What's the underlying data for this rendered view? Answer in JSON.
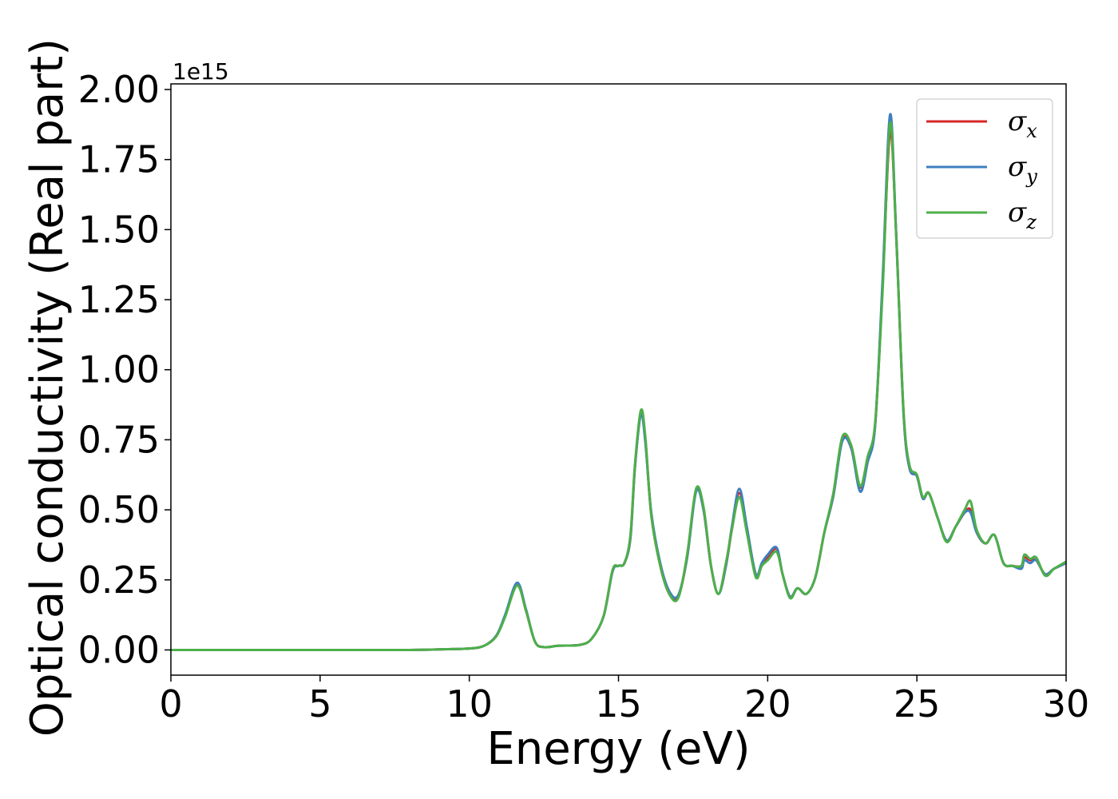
{
  "chart_data": {
    "type": "line",
    "xlabel": "Energy (eV)",
    "ylabel": "Optical conductivity (Real part)",
    "y_offset_text": "1e15",
    "y_scale_factor": 1000000000000000.0,
    "xlim": [
      0,
      30
    ],
    "ylim": [
      -0.09,
      2.02
    ],
    "xticks": [
      0,
      5,
      10,
      15,
      20,
      25,
      30
    ],
    "xtick_labels": [
      "0",
      "5",
      "10",
      "15",
      "20",
      "25",
      "30"
    ],
    "yticks": [
      0,
      0.25,
      0.5,
      0.75,
      1.0,
      1.25,
      1.5,
      1.75,
      2.0
    ],
    "ytick_labels": [
      "0.00",
      "0.25",
      "0.50",
      "0.75",
      "1.00",
      "1.25",
      "1.50",
      "1.75",
      "2.00"
    ],
    "grid": false,
    "legend_position": "top-right",
    "series": [
      {
        "name": "σx",
        "legend_symbol": "σ",
        "legend_subscript": "x",
        "color": "#d62728",
        "points": [
          [
            0,
            0
          ],
          [
            5,
            0
          ],
          [
            8,
            0
          ],
          [
            9,
            0.002
          ],
          [
            10,
            0.005
          ],
          [
            10.5,
            0.015
          ],
          [
            10.9,
            0.05
          ],
          [
            11.2,
            0.12
          ],
          [
            11.6,
            0.235
          ],
          [
            11.9,
            0.14
          ],
          [
            12.2,
            0.03
          ],
          [
            12.5,
            0.01
          ],
          [
            13,
            0.015
          ],
          [
            13.7,
            0.018
          ],
          [
            14.1,
            0.04
          ],
          [
            14.5,
            0.12
          ],
          [
            14.8,
            0.28
          ],
          [
            15.0,
            0.3
          ],
          [
            15.2,
            0.31
          ],
          [
            15.4,
            0.4
          ],
          [
            15.55,
            0.65
          ],
          [
            15.75,
            0.85
          ],
          [
            15.9,
            0.75
          ],
          [
            16.1,
            0.48
          ],
          [
            16.4,
            0.3
          ],
          [
            16.7,
            0.2
          ],
          [
            17.0,
            0.19
          ],
          [
            17.3,
            0.33
          ],
          [
            17.6,
            0.57
          ],
          [
            17.85,
            0.5
          ],
          [
            18.1,
            0.3
          ],
          [
            18.35,
            0.2
          ],
          [
            18.6,
            0.3
          ],
          [
            18.8,
            0.43
          ],
          [
            19.05,
            0.56
          ],
          [
            19.3,
            0.43
          ],
          [
            19.6,
            0.27
          ],
          [
            19.8,
            0.3
          ],
          [
            20.0,
            0.33
          ],
          [
            20.3,
            0.36
          ],
          [
            20.5,
            0.27
          ],
          [
            20.75,
            0.19
          ],
          [
            21.0,
            0.22
          ],
          [
            21.3,
            0.2
          ],
          [
            21.6,
            0.26
          ],
          [
            21.9,
            0.42
          ],
          [
            22.2,
            0.55
          ],
          [
            22.5,
            0.75
          ],
          [
            22.8,
            0.72
          ],
          [
            23.1,
            0.58
          ],
          [
            23.35,
            0.68
          ],
          [
            23.6,
            0.8
          ],
          [
            23.85,
            1.3
          ],
          [
            24.1,
            1.85
          ],
          [
            24.3,
            1.5
          ],
          [
            24.55,
            0.85
          ],
          [
            24.75,
            0.65
          ],
          [
            25.0,
            0.62
          ],
          [
            25.2,
            0.54
          ],
          [
            25.4,
            0.56
          ],
          [
            25.7,
            0.47
          ],
          [
            26.0,
            0.39
          ],
          [
            26.3,
            0.44
          ],
          [
            26.6,
            0.49
          ],
          [
            26.8,
            0.5
          ],
          [
            27.0,
            0.42
          ],
          [
            27.3,
            0.38
          ],
          [
            27.6,
            0.41
          ],
          [
            27.9,
            0.31
          ],
          [
            28.2,
            0.3
          ],
          [
            28.5,
            0.3
          ],
          [
            28.6,
            0.33
          ],
          [
            28.8,
            0.32
          ],
          [
            29.0,
            0.32
          ],
          [
            29.3,
            0.27
          ],
          [
            29.6,
            0.29
          ],
          [
            30,
            0.31
          ]
        ]
      },
      {
        "name": "σy",
        "legend_symbol": "σ",
        "legend_subscript": "y",
        "color": "#3f7fbf",
        "points": [
          [
            0,
            0
          ],
          [
            5,
            0
          ],
          [
            8,
            0
          ],
          [
            9,
            0.002
          ],
          [
            10,
            0.005
          ],
          [
            10.5,
            0.015
          ],
          [
            10.9,
            0.05
          ],
          [
            11.2,
            0.125
          ],
          [
            11.6,
            0.24
          ],
          [
            11.9,
            0.145
          ],
          [
            12.2,
            0.03
          ],
          [
            12.5,
            0.01
          ],
          [
            13,
            0.015
          ],
          [
            13.7,
            0.018
          ],
          [
            14.1,
            0.04
          ],
          [
            14.5,
            0.12
          ],
          [
            14.8,
            0.28
          ],
          [
            15.0,
            0.3
          ],
          [
            15.2,
            0.31
          ],
          [
            15.4,
            0.4
          ],
          [
            15.55,
            0.65
          ],
          [
            15.75,
            0.84
          ],
          [
            15.9,
            0.74
          ],
          [
            16.1,
            0.49
          ],
          [
            16.4,
            0.31
          ],
          [
            16.7,
            0.21
          ],
          [
            17.0,
            0.195
          ],
          [
            17.3,
            0.33
          ],
          [
            17.6,
            0.565
          ],
          [
            17.85,
            0.5
          ],
          [
            18.1,
            0.3
          ],
          [
            18.35,
            0.2
          ],
          [
            18.6,
            0.3
          ],
          [
            18.8,
            0.44
          ],
          [
            19.05,
            0.575
          ],
          [
            19.3,
            0.44
          ],
          [
            19.6,
            0.27
          ],
          [
            19.8,
            0.31
          ],
          [
            20.0,
            0.34
          ],
          [
            20.3,
            0.365
          ],
          [
            20.5,
            0.27
          ],
          [
            20.75,
            0.19
          ],
          [
            21.0,
            0.22
          ],
          [
            21.3,
            0.2
          ],
          [
            21.6,
            0.26
          ],
          [
            21.9,
            0.42
          ],
          [
            22.2,
            0.55
          ],
          [
            22.5,
            0.745
          ],
          [
            22.8,
            0.72
          ],
          [
            23.1,
            0.565
          ],
          [
            23.35,
            0.67
          ],
          [
            23.6,
            0.8
          ],
          [
            23.85,
            1.32
          ],
          [
            24.1,
            1.91
          ],
          [
            24.3,
            1.5
          ],
          [
            24.55,
            0.85
          ],
          [
            24.75,
            0.65
          ],
          [
            25.0,
            0.62
          ],
          [
            25.2,
            0.54
          ],
          [
            25.4,
            0.56
          ],
          [
            25.7,
            0.47
          ],
          [
            26.0,
            0.39
          ],
          [
            26.3,
            0.44
          ],
          [
            26.6,
            0.49
          ],
          [
            26.8,
            0.49
          ],
          [
            27.0,
            0.42
          ],
          [
            27.3,
            0.38
          ],
          [
            27.6,
            0.41
          ],
          [
            27.9,
            0.31
          ],
          [
            28.2,
            0.3
          ],
          [
            28.5,
            0.29
          ],
          [
            28.6,
            0.32
          ],
          [
            28.8,
            0.31
          ],
          [
            29.0,
            0.32
          ],
          [
            29.3,
            0.27
          ],
          [
            29.6,
            0.29
          ],
          [
            30,
            0.31
          ]
        ]
      },
      {
        "name": "σz",
        "legend_symbol": "σ",
        "legend_subscript": "z",
        "color": "#4daf4a",
        "points": [
          [
            0,
            0
          ],
          [
            5,
            0
          ],
          [
            8,
            0
          ],
          [
            9,
            0.002
          ],
          [
            10,
            0.005
          ],
          [
            10.5,
            0.015
          ],
          [
            10.9,
            0.048
          ],
          [
            11.2,
            0.118
          ],
          [
            11.6,
            0.23
          ],
          [
            11.9,
            0.14
          ],
          [
            12.2,
            0.03
          ],
          [
            12.5,
            0.01
          ],
          [
            13,
            0.015
          ],
          [
            13.7,
            0.018
          ],
          [
            14.1,
            0.04
          ],
          [
            14.5,
            0.12
          ],
          [
            14.8,
            0.285
          ],
          [
            15.0,
            0.3
          ],
          [
            15.2,
            0.31
          ],
          [
            15.4,
            0.41
          ],
          [
            15.55,
            0.66
          ],
          [
            15.75,
            0.855
          ],
          [
            15.9,
            0.76
          ],
          [
            16.1,
            0.48
          ],
          [
            16.4,
            0.3
          ],
          [
            16.7,
            0.2
          ],
          [
            17.0,
            0.185
          ],
          [
            17.3,
            0.34
          ],
          [
            17.6,
            0.575
          ],
          [
            17.85,
            0.51
          ],
          [
            18.1,
            0.3
          ],
          [
            18.35,
            0.2
          ],
          [
            18.6,
            0.31
          ],
          [
            18.8,
            0.43
          ],
          [
            19.05,
            0.545
          ],
          [
            19.3,
            0.42
          ],
          [
            19.6,
            0.26
          ],
          [
            19.8,
            0.3
          ],
          [
            20.0,
            0.32
          ],
          [
            20.3,
            0.35
          ],
          [
            20.5,
            0.27
          ],
          [
            20.75,
            0.185
          ],
          [
            21.0,
            0.22
          ],
          [
            21.3,
            0.2
          ],
          [
            21.6,
            0.26
          ],
          [
            21.9,
            0.42
          ],
          [
            22.2,
            0.56
          ],
          [
            22.5,
            0.76
          ],
          [
            22.8,
            0.73
          ],
          [
            23.1,
            0.585
          ],
          [
            23.35,
            0.69
          ],
          [
            23.6,
            0.81
          ],
          [
            23.85,
            1.28
          ],
          [
            24.1,
            1.88
          ],
          [
            24.3,
            1.49
          ],
          [
            24.55,
            0.86
          ],
          [
            24.75,
            0.66
          ],
          [
            25.0,
            0.625
          ],
          [
            25.2,
            0.545
          ],
          [
            25.4,
            0.56
          ],
          [
            25.7,
            0.47
          ],
          [
            26.0,
            0.385
          ],
          [
            26.3,
            0.44
          ],
          [
            26.6,
            0.5
          ],
          [
            26.8,
            0.53
          ],
          [
            27.0,
            0.43
          ],
          [
            27.3,
            0.38
          ],
          [
            27.6,
            0.41
          ],
          [
            27.9,
            0.31
          ],
          [
            28.2,
            0.3
          ],
          [
            28.5,
            0.3
          ],
          [
            28.6,
            0.34
          ],
          [
            28.8,
            0.325
          ],
          [
            29.0,
            0.33
          ],
          [
            29.3,
            0.265
          ],
          [
            29.6,
            0.29
          ],
          [
            30,
            0.315
          ]
        ]
      }
    ]
  }
}
